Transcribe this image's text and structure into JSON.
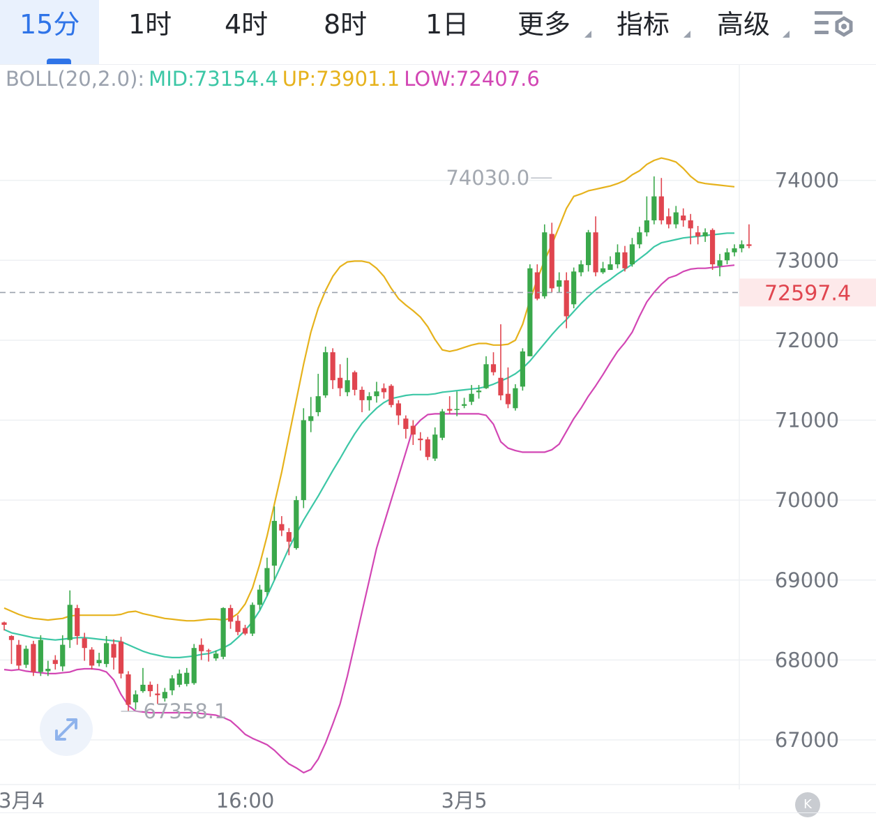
{
  "tabs": [
    {
      "label": "15分",
      "active": true,
      "caret": false
    },
    {
      "label": "1时",
      "active": false,
      "caret": false
    },
    {
      "label": "4时",
      "active": false,
      "caret": false
    },
    {
      "label": "8时",
      "active": false,
      "caret": false
    },
    {
      "label": "1日",
      "active": false,
      "caret": false
    },
    {
      "label": "更多",
      "active": false,
      "caret": true
    },
    {
      "label": "指标",
      "active": false,
      "caret": true
    },
    {
      "label": "高级",
      "active": false,
      "caret": true
    }
  ],
  "settings_icon": "chart-settings-icon",
  "indicator": {
    "name": "BOLL(20,2.0):",
    "mid": "MID:73154.4",
    "up": "UP:73901.1",
    "low": "LOW:72407.6",
    "colors": {
      "name": "#9aa1ad",
      "mid": "#3cc7a6",
      "up": "#e6b21c",
      "low": "#d246b4"
    }
  },
  "colors": {
    "up_candle": "#3aa84b",
    "down_candle": "#e0454f",
    "accent": "#2f74e8",
    "current_price_bg": "#fde9ea",
    "current_price_text": "#e0454f"
  },
  "expand_icon": "expand-icon",
  "k_button": "K",
  "chart_data": {
    "type": "candlestick",
    "interval": "15分",
    "ylim": [
      66430,
      75190
    ],
    "y_ticks": [
      74000,
      73000,
      72000,
      71000,
      70000,
      69000,
      68000,
      67000
    ],
    "y_tick_labels": [
      "74000",
      "73000",
      "72000",
      "71000",
      "70000",
      "69000",
      "68000",
      "67000"
    ],
    "x_labels": [
      {
        "index": 0,
        "text": "3月4"
      },
      {
        "index": 33,
        "text": "16:00"
      },
      {
        "index": 63,
        "text": "3月5"
      }
    ],
    "current_price": 72597.4,
    "current_price_label": "72597.4",
    "annotations": [
      {
        "text": "74030.0",
        "index": 75,
        "value": 74030.0,
        "side": "left"
      },
      {
        "text": "67358.1",
        "index": 16,
        "value": 67358.1,
        "side": "right"
      }
    ],
    "candles": [
      [
        68470,
        68440,
        68480,
        68370
      ],
      [
        68300,
        68250,
        68310,
        67950
      ],
      [
        68190,
        67930,
        68250,
        67880
      ],
      [
        67940,
        68140,
        68180,
        67900
      ],
      [
        68200,
        67850,
        68240,
        67800
      ],
      [
        67850,
        68250,
        68310,
        67800
      ],
      [
        67860,
        67890,
        67990,
        67800
      ],
      [
        68000,
        67950,
        68060,
        67880
      ],
      [
        67920,
        68190,
        68310,
        67860
      ],
      [
        68250,
        68690,
        68870,
        68150
      ],
      [
        68650,
        68300,
        68690,
        68190
      ],
      [
        68270,
        68150,
        68340,
        67990
      ],
      [
        68130,
        67930,
        68160,
        67880
      ],
      [
        67960,
        68000,
        68090,
        67920
      ],
      [
        67950,
        68210,
        68300,
        67910
      ],
      [
        68200,
        68030,
        68260,
        67880
      ],
      [
        68230,
        67830,
        68290,
        67770
      ],
      [
        67820,
        67440,
        67860,
        67360
      ],
      [
        67470,
        67570,
        67620,
        67380
      ],
      [
        67610,
        67690,
        67900,
        67590
      ],
      [
        67690,
        67610,
        67730,
        67540
      ],
      [
        67580,
        67560,
        67700,
        67450
      ],
      [
        67520,
        67600,
        67650,
        67480
      ],
      [
        67620,
        67770,
        67810,
        67560
      ],
      [
        67690,
        67830,
        67880,
        67660
      ],
      [
        67700,
        67840,
        67900,
        67670
      ],
      [
        67710,
        68150,
        68200,
        67690
      ],
      [
        68190,
        68110,
        68270,
        68000
      ],
      [
        68120,
        68110,
        68140,
        67980
      ],
      [
        68020,
        68080,
        68120,
        67990
      ],
      [
        68040,
        68650,
        68660,
        68010
      ],
      [
        68650,
        68480,
        68690,
        68390
      ],
      [
        68490,
        68350,
        68560,
        68310
      ],
      [
        68400,
        68330,
        68440,
        68310
      ],
      [
        68330,
        68690,
        68720,
        68300
      ],
      [
        68690,
        68880,
        68940,
        68630
      ],
      [
        68850,
        69150,
        69280,
        68800
      ],
      [
        69180,
        69740,
        69920,
        69000
      ],
      [
        69700,
        69620,
        69800,
        69550
      ],
      [
        69600,
        69480,
        69650,
        69310
      ],
      [
        69400,
        70000,
        70050,
        69380
      ],
      [
        70000,
        71000,
        71150,
        69900
      ],
      [
        70990,
        71050,
        71290,
        70850
      ],
      [
        71100,
        71300,
        71580,
        71050
      ],
      [
        71310,
        71850,
        71920,
        71280
      ],
      [
        71850,
        71500,
        71900,
        71390
      ],
      [
        71530,
        71400,
        71700,
        71300
      ],
      [
        71350,
        71500,
        71780,
        71300
      ],
      [
        71600,
        71380,
        71620,
        71310
      ],
      [
        71380,
        71250,
        71420,
        71100
      ],
      [
        71250,
        71300,
        71350,
        71120
      ],
      [
        71300,
        71360,
        71480,
        71220
      ],
      [
        71400,
        71350,
        71460,
        71270
      ],
      [
        71430,
        71190,
        71450,
        71160
      ],
      [
        71210,
        71060,
        71250,
        70940
      ],
      [
        71020,
        70890,
        71060,
        70770
      ],
      [
        70930,
        70820,
        71000,
        70690
      ],
      [
        70770,
        70750,
        70850,
        70620
      ],
      [
        70760,
        70540,
        70790,
        70500
      ],
      [
        70520,
        70820,
        70910,
        70490
      ],
      [
        70780,
        71110,
        71140,
        70750
      ],
      [
        71140,
        71120,
        71300,
        71080
      ],
      [
        71130,
        71140,
        71360,
        71050
      ],
      [
        71180,
        71200,
        71280,
        71150
      ],
      [
        71230,
        71330,
        71440,
        71190
      ],
      [
        71350,
        71370,
        71440,
        71270
      ],
      [
        71400,
        71700,
        71800,
        71390
      ],
      [
        71700,
        71600,
        71850,
        71560
      ],
      [
        71530,
        71310,
        72200,
        71250
      ],
      [
        71330,
        71200,
        71660,
        71150
      ],
      [
        71150,
        71400,
        71450,
        71120
      ],
      [
        71420,
        71860,
        71900,
        71370
      ],
      [
        71800,
        72900,
        72950,
        71800
      ],
      [
        72850,
        72520,
        72950,
        72500
      ],
      [
        72550,
        73350,
        73450,
        72520
      ],
      [
        73330,
        72650,
        73470,
        72600
      ],
      [
        72670,
        72750,
        72850,
        72600
      ],
      [
        72750,
        72300,
        72850,
        72150
      ],
      [
        72450,
        72860,
        72910,
        72400
      ],
      [
        72850,
        72950,
        73000,
        72800
      ],
      [
        72940,
        73350,
        73380,
        72860
      ],
      [
        73350,
        72850,
        73550,
        72800
      ],
      [
        72850,
        72900,
        72980,
        72830
      ],
      [
        72880,
        72950,
        73050,
        72880
      ],
      [
        72950,
        73100,
        73200,
        72900
      ],
      [
        73100,
        72900,
        73180,
        72860
      ],
      [
        72950,
        73200,
        73280,
        72920
      ],
      [
        73200,
        73350,
        73420,
        73150
      ],
      [
        73350,
        73500,
        73800,
        73300
      ],
      [
        73500,
        73800,
        74050,
        73450
      ],
      [
        73800,
        73500,
        74030,
        73450
      ],
      [
        73550,
        73450,
        73650,
        73400
      ],
      [
        73450,
        73600,
        73680,
        73400
      ],
      [
        73560,
        73500,
        73650,
        73420
      ],
      [
        73500,
        73400,
        73580,
        73200
      ],
      [
        73350,
        73300,
        73430,
        73200
      ],
      [
        73300,
        73350,
        73400,
        73230
      ],
      [
        73380,
        72950,
        73400,
        72880
      ],
      [
        72930,
        73000,
        73080,
        72800
      ],
      [
        73000,
        73100,
        73150,
        72950
      ],
      [
        73100,
        73150,
        73200,
        73050
      ],
      [
        73150,
        73200,
        73250,
        73100
      ],
      [
        73200,
        73180,
        73450,
        73150
      ]
    ],
    "series": [
      {
        "name": "MID",
        "color": "#3cc7a6",
        "values": [
          68380,
          68340,
          68320,
          68300,
          68280,
          68270,
          68260,
          68250,
          68260,
          68270,
          68280,
          68280,
          68270,
          68260,
          68250,
          68240,
          68230,
          68190,
          68150,
          68110,
          68080,
          68060,
          68040,
          68030,
          68030,
          68040,
          68050,
          68070,
          68080,
          68110,
          68150,
          68200,
          68280,
          68370,
          68480,
          68620,
          68800,
          69000,
          69200,
          69400,
          69580,
          69750,
          69900,
          70050,
          70210,
          70370,
          70520,
          70680,
          70830,
          70960,
          71060,
          71150,
          71220,
          71270,
          71290,
          71310,
          71320,
          71320,
          71320,
          71330,
          71350,
          71360,
          71370,
          71380,
          71390,
          71400,
          71420,
          71450,
          71490,
          71530,
          71580,
          71650,
          71740,
          71850,
          71960,
          72070,
          72170,
          72260,
          72360,
          72460,
          72550,
          72630,
          72700,
          72760,
          72830,
          72890,
          72950,
          73020,
          73090,
          73170,
          73220,
          73240,
          73260,
          73280,
          73290,
          73300,
          73310,
          73320,
          73330,
          73340,
          73340
        ]
      },
      {
        "name": "UP",
        "color": "#e6b21c",
        "values": [
          68650,
          68610,
          68570,
          68540,
          68520,
          68510,
          68500,
          68510,
          68520,
          68550,
          68560,
          68560,
          68560,
          68560,
          68560,
          68560,
          68570,
          68600,
          68610,
          68580,
          68560,
          68540,
          68520,
          68510,
          68500,
          68490,
          68490,
          68500,
          68510,
          68510,
          68500,
          68520,
          68580,
          68700,
          68900,
          69200,
          69550,
          69950,
          70350,
          70800,
          71250,
          71700,
          72100,
          72400,
          72620,
          72800,
          72920,
          72980,
          72990,
          72990,
          72970,
          72900,
          72800,
          72650,
          72520,
          72440,
          72370,
          72290,
          72170,
          72010,
          71880,
          71860,
          71880,
          71910,
          71940,
          71960,
          71960,
          71940,
          71940,
          71950,
          72000,
          72200,
          72500,
          72760,
          73000,
          73200,
          73420,
          73650,
          73800,
          73830,
          73870,
          73890,
          73910,
          73930,
          73960,
          74000,
          74070,
          74120,
          74200,
          74250,
          74280,
          74260,
          74230,
          74150,
          74050,
          73980,
          73960,
          73950,
          73940,
          73930,
          73920
        ]
      },
      {
        "name": "LOW",
        "color": "#d246b4",
        "values": [
          67880,
          67870,
          67880,
          67860,
          67850,
          67840,
          67830,
          67830,
          67840,
          67850,
          67880,
          67890,
          67890,
          67880,
          67850,
          67750,
          67570,
          67430,
          67360,
          67350,
          67340,
          67340,
          67340,
          67340,
          67340,
          67340,
          67340,
          67330,
          67320,
          67310,
          67280,
          67240,
          67160,
          67070,
          67020,
          66980,
          66940,
          66870,
          66780,
          66700,
          66650,
          66590,
          66630,
          66760,
          66960,
          67200,
          67450,
          67800,
          68200,
          68600,
          69000,
          69400,
          69700,
          70000,
          70300,
          70600,
          70900,
          71000,
          71070,
          71080,
          71080,
          71080,
          71080,
          71080,
          71080,
          71080,
          71060,
          70950,
          70730,
          70650,
          70620,
          70600,
          70600,
          70600,
          70600,
          70630,
          70700,
          70860,
          71020,
          71150,
          71300,
          71430,
          71570,
          71720,
          71860,
          71970,
          72100,
          72300,
          72480,
          72600,
          72700,
          72780,
          72810,
          72860,
          72890,
          72900,
          72900,
          72910,
          72920,
          72930,
          72940
        ]
      }
    ]
  }
}
